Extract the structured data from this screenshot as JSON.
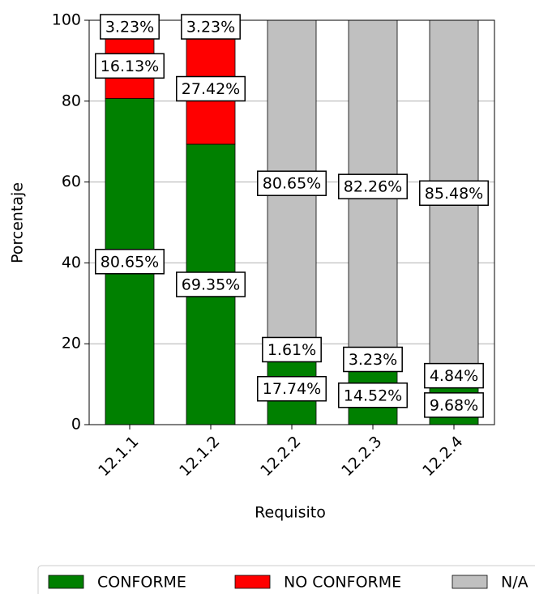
{
  "chart_data": {
    "type": "bar",
    "stacked": true,
    "x_label": "Requisito",
    "y_label": "Porcentaje",
    "categories": [
      "12.1.1",
      "12.1.2",
      "12.2.2",
      "12.2.3",
      "12.2.4"
    ],
    "series": [
      {
        "name": "CONFORME",
        "color": "#008000",
        "values": [
          80.65,
          69.35,
          17.74,
          14.52,
          9.68
        ],
        "value_labels": [
          "80.65%",
          "69.35%",
          "17.74%",
          "14.52%",
          "9.68%"
        ]
      },
      {
        "name": "NO CONFORME",
        "color": "#ff0000",
        "values": [
          16.13,
          27.42,
          1.61,
          3.23,
          4.84
        ],
        "value_labels": [
          "16.13%",
          "27.42%",
          "1.61%",
          "3.23%",
          "4.84%"
        ]
      },
      {
        "name": "N/A",
        "color": "#c0c0c0",
        "values": [
          3.23,
          3.23,
          80.65,
          82.26,
          85.48
        ],
        "value_labels": [
          "3.23%",
          "3.23%",
          "80.65%",
          "82.26%",
          "85.48%"
        ]
      }
    ],
    "ylim": [
      0,
      100
    ],
    "yticks": [
      0,
      20,
      40,
      60,
      80,
      100
    ],
    "grid": true,
    "legend": "bottom"
  }
}
